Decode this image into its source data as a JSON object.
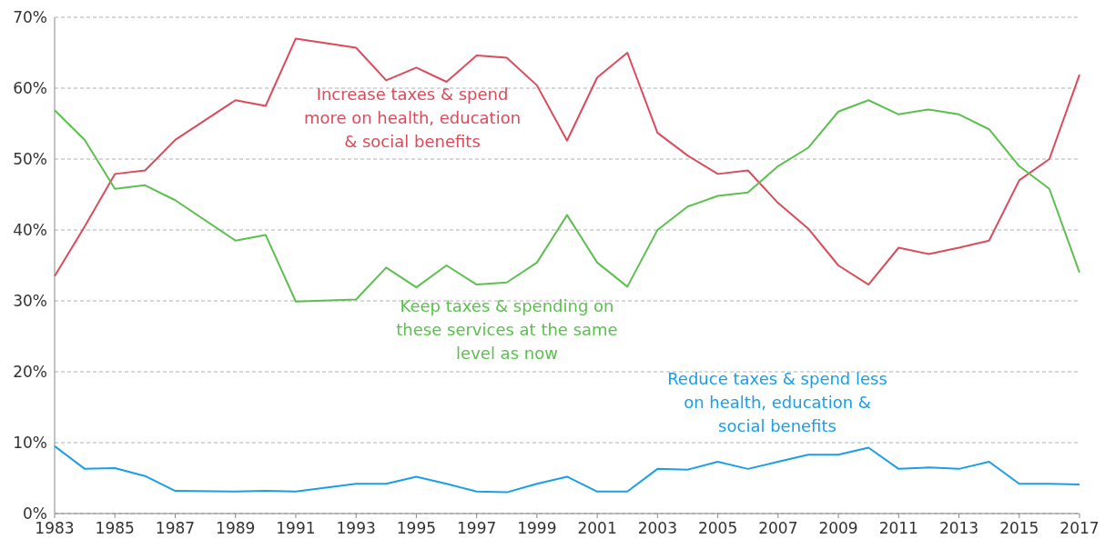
{
  "chart_data": {
    "type": "line",
    "x": [
      1983,
      1984,
      1985,
      1986,
      1987,
      1989,
      1990,
      1991,
      1993,
      1994,
      1995,
      1996,
      1997,
      1998,
      1999,
      2000,
      2001,
      2002,
      2003,
      2004,
      2005,
      2006,
      2007,
      2008,
      2009,
      2010,
      2011,
      2012,
      2013,
      2014,
      2015,
      2016,
      2017
    ],
    "series": [
      {
        "name": "Increase taxes & spend more on health, education & social benefits",
        "color": "#dc4b5a",
        "values": [
          33.5,
          40.5,
          47.9,
          48.4,
          52.7,
          58.3,
          57.5,
          67.0,
          65.7,
          61.1,
          62.9,
          60.9,
          64.6,
          64.3,
          60.4,
          52.6,
          61.5,
          65.0,
          53.7,
          50.5,
          47.9,
          48.4,
          43.8,
          40.2,
          35.0,
          32.3,
          37.5,
          36.6,
          37.5,
          38.5,
          47.0,
          50.0,
          61.9
        ]
      },
      {
        "name": "Keep taxes & spending on these services at the same level as now",
        "color": "#5cc04f",
        "values": [
          56.9,
          52.7,
          45.8,
          46.3,
          44.2,
          38.5,
          39.3,
          29.9,
          30.2,
          34.7,
          31.9,
          35.0,
          32.3,
          32.6,
          35.4,
          42.1,
          35.4,
          32.0,
          40.0,
          43.3,
          44.8,
          45.3,
          49.0,
          51.6,
          56.7,
          58.3,
          56.3,
          57.0,
          56.3,
          54.2,
          49.0,
          45.8,
          34.0
        ]
      },
      {
        "name": "Reduce taxes & spend less on health, education & social benefits",
        "color": "#1a9ee8",
        "values": [
          9.5,
          6.3,
          6.4,
          5.3,
          3.2,
          3.1,
          3.2,
          3.1,
          4.2,
          4.2,
          5.2,
          4.2,
          3.1,
          3.0,
          4.2,
          5.2,
          3.1,
          3.1,
          6.3,
          6.2,
          7.3,
          6.3,
          7.3,
          8.3,
          8.3,
          9.3,
          6.3,
          6.5,
          6.3,
          7.3,
          4.2,
          4.2,
          4.1
        ]
      }
    ],
    "xlim": [
      1983,
      2017
    ],
    "xticks": [
      1983,
      1985,
      1987,
      1989,
      1991,
      1993,
      1995,
      1997,
      1999,
      2001,
      2003,
      2005,
      2007,
      2009,
      2011,
      2013,
      2015,
      2017
    ],
    "ylim": [
      0,
      70
    ],
    "yticks": [
      {
        "value": 0,
        "label": "0%"
      },
      {
        "value": 10,
        "label": "10%"
      },
      {
        "value": 20,
        "label": "20%"
      },
      {
        "value": 30,
        "label": "30%"
      },
      {
        "value": 40,
        "label": "40%"
      },
      {
        "value": 50,
        "label": "50%"
      },
      {
        "value": 60,
        "label": "60%"
      },
      {
        "value": 70,
        "label": "70%"
      }
    ],
    "grid": "y",
    "marker": "none",
    "line_style": "solid"
  }
}
